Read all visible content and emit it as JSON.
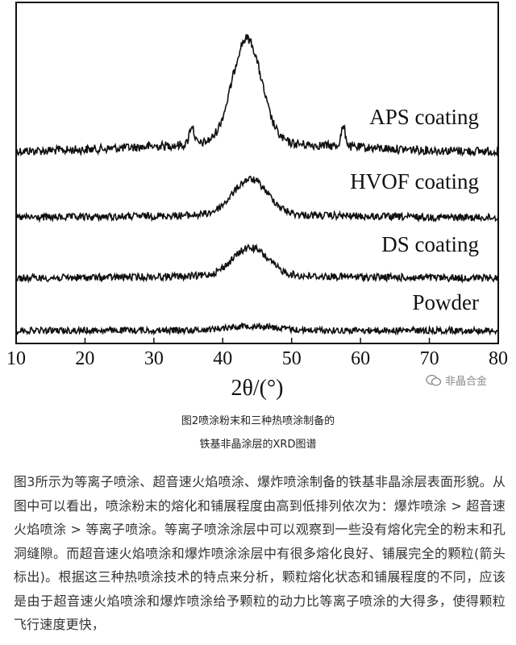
{
  "chart_data": {
    "type": "line",
    "x_domain": [
      10,
      80
    ],
    "x_ticks": [
      10,
      20,
      30,
      40,
      50,
      60,
      70,
      80
    ],
    "xlabel": "2θ/(°)",
    "y_ticks_shown": false,
    "grid": false,
    "legend": "none",
    "series": [
      {
        "name": "APS coating",
        "peak_center": 43.5,
        "peak_height_rel": 1.0,
        "peak_fwhm": 5,
        "minor_peaks": [
          35.5,
          57.5
        ]
      },
      {
        "name": "HVOF coating",
        "peak_center": 44,
        "peak_height_rel": 0.55,
        "peak_fwhm": 6,
        "minor_peaks": []
      },
      {
        "name": "DS coating",
        "peak_center": 44,
        "peak_height_rel": 0.5,
        "peak_fwhm": 6,
        "minor_peaks": []
      },
      {
        "name": "Powder",
        "peak_center": 44,
        "peak_height_rel": 0.25,
        "peak_fwhm": 8,
        "minor_peaks": []
      }
    ]
  },
  "watermark": {
    "text": "非晶合金"
  },
  "caption": {
    "line1": "图2喷涂粉末和三种热喷涂制备的",
    "line2": "铁基非晶涂层的XRD图谱"
  },
  "body": {
    "paragraph": "图3所示为等离子喷涂、超音速火焰喷涂、爆炸喷涂制备的铁基非晶涂层表面形貌。从图中可以看出，喷涂粉末的熔化和铺展程度由高到低排列依次为：爆炸喷涂 > 超音速火焰喷涂 > 等离子喷涂。等离子喷涂涂层中可以观察到一些没有熔化完全的粉末和孔洞缝隙。而超音速火焰喷涂和爆炸喷涂涂层中有很多熔化良好、铺展完全的颗粒(箭头标出)。根据这三种热喷涂技术的特点来分析，颗粒熔化状态和铺展程度的不同，应该是由于超音速火焰喷涂和爆炸喷涂给予颗粒的动力比等离子喷涂的大得多，使得颗粒飞行速度更快，"
  }
}
